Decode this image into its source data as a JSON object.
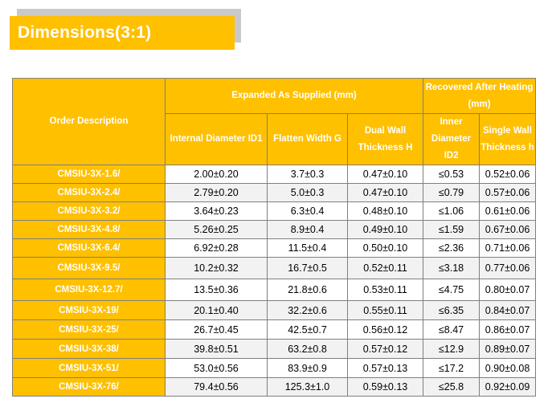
{
  "title": "Dimensions(3:1)",
  "headers": {
    "order_description": "Order Description",
    "expanded_group": "Expanded As Supplied (mm)",
    "recovered_group": "Recovered After Heating (mm)",
    "internal_diameter": "Internal Diameter ID1",
    "flatten_width": "Flatten Width G",
    "dual_wall": "Dual Wall Thickness H",
    "inner_diameter": "Inner Diameter ID2",
    "single_wall": "Single Wall Thickness h"
  },
  "rows": [
    {
      "desc": "CMSIU-3X-1.6/",
      "id1": "2.00±0.20",
      "g": "3.7±0.3",
      "h_dual": "0.47±0.10",
      "id2": "≤0.53",
      "h_single": "0.52±0.06"
    },
    {
      "desc": "CMSIU-3X-2.4/",
      "id1": "2.79±0.20",
      "g": "5.0±0.3",
      "h_dual": "0.47±0.10",
      "id2": "≤0.79",
      "h_single": "0.57±0.06"
    },
    {
      "desc": "CMSIU-3X-3.2/",
      "id1": "3.64±0.23",
      "g": "6.3±0.4",
      "h_dual": "0.48±0.10",
      "id2": "≤1.06",
      "h_single": "0.61±0.06"
    },
    {
      "desc": "CMSIU-3X-4.8/",
      "id1": "5.26±0.25",
      "g": "8.9±0.4",
      "h_dual": "0.49±0.10",
      "id2": "≤1.59",
      "h_single": "0.67±0.06"
    },
    {
      "desc": "CMSIU-3X-6.4/",
      "id1": "6.92±0.28",
      "g": "11.5±0.4",
      "h_dual": "0.50±0.10",
      "id2": "≤2.36",
      "h_single": "0.71±0.06"
    },
    {
      "desc": "CMSIU-3X-9.5/",
      "id1": "10.2±0.32",
      "g": "16.7±0.5",
      "h_dual": "0.52±0.11",
      "id2": "≤3.18",
      "h_single": "0.77±0.06"
    },
    {
      "desc": "CMSIU-3X-12.7/",
      "id1": "13.5±0.36",
      "g": "21.8±0.6",
      "h_dual": "0.53±0.11",
      "id2": "≤4.75",
      "h_single": "0.80±0.07"
    },
    {
      "desc": "CMSIU-3X-19/",
      "id1": "20.1±0.40",
      "g": "32.2±0.6",
      "h_dual": "0.55±0.11",
      "id2": "≤6.35",
      "h_single": "0.84±0.07"
    },
    {
      "desc": "CMSIU-3X-25/",
      "id1": "26.7±0.45",
      "g": "42.5±0.7",
      "h_dual": "0.56±0.12",
      "id2": "≤8.47",
      "h_single": "0.86±0.07"
    },
    {
      "desc": "CMSIU-3X-38/",
      "id1": "39.8±0.51",
      "g": "63.2±0.8",
      "h_dual": "0.57±0.12",
      "id2": "≤12.9",
      "h_single": "0.89±0.07"
    },
    {
      "desc": "CMSIU-3X-51/",
      "id1": "53.0±0.56",
      "g": "83.9±0.9",
      "h_dual": "0.57±0.13",
      "id2": "≤17.2",
      "h_single": "0.90±0.08"
    },
    {
      "desc": "CMSIU-3X-76/",
      "id1": "79.4±0.56",
      "g": "125.3±1.0",
      "h_dual": "0.59±0.13",
      "id2": "≤25.8",
      "h_single": "0.92±0.09"
    }
  ],
  "colors": {
    "accent": "#ffc000",
    "header_text": "#ffffff",
    "border": "#7f7f7f",
    "row_alt": "#f2f2f2"
  }
}
